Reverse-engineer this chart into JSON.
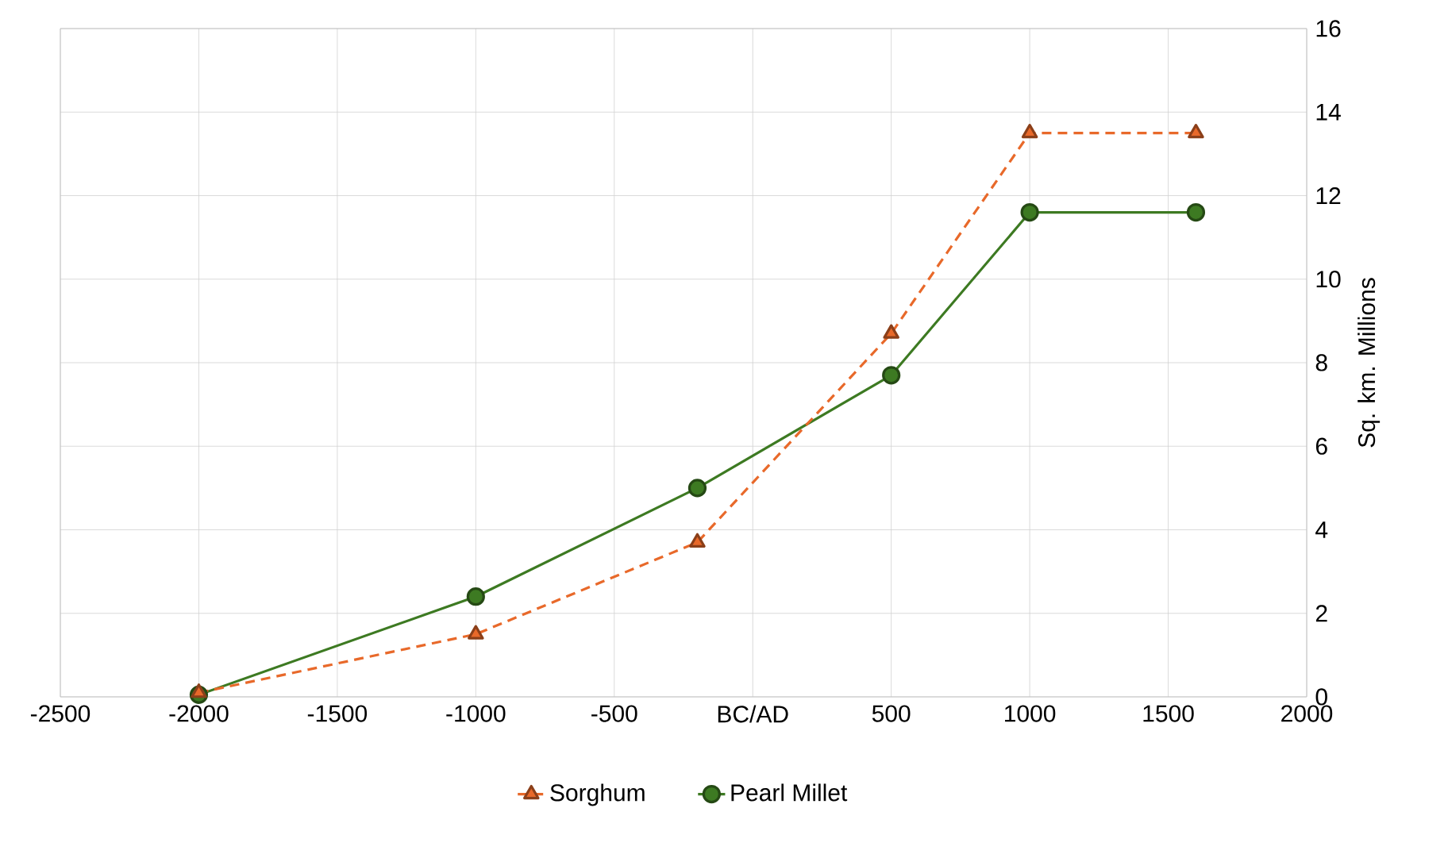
{
  "chart_data": {
    "type": "line",
    "ylabel": "Sq. km. Millions",
    "x": [
      -2000,
      -1000,
      -200,
      500,
      1000,
      1600
    ],
    "series": [
      {
        "name": "Sorghum",
        "color": "#e8692a",
        "marker": "triangle",
        "line_style": "dashed",
        "values": [
          0.1,
          1.5,
          3.7,
          8.7,
          13.5,
          13.5
        ]
      },
      {
        "name": "Pearl Millet",
        "color": "#3d7a22",
        "marker": "circle",
        "line_style": "solid",
        "values": [
          0.05,
          2.4,
          5.0,
          7.7,
          11.6,
          11.6
        ]
      }
    ],
    "xlim": [
      -2500,
      2000
    ],
    "xticks": [
      -2500,
      -2000,
      -1500,
      -1000,
      -500,
      {
        "value": 0,
        "label": "BC/AD"
      },
      500,
      1000,
      1500,
      2000
    ],
    "ylim": [
      0,
      16
    ],
    "yticks": [
      0,
      2,
      4,
      6,
      8,
      10,
      12,
      14,
      16
    ],
    "grid": true,
    "legend": "bottom"
  }
}
